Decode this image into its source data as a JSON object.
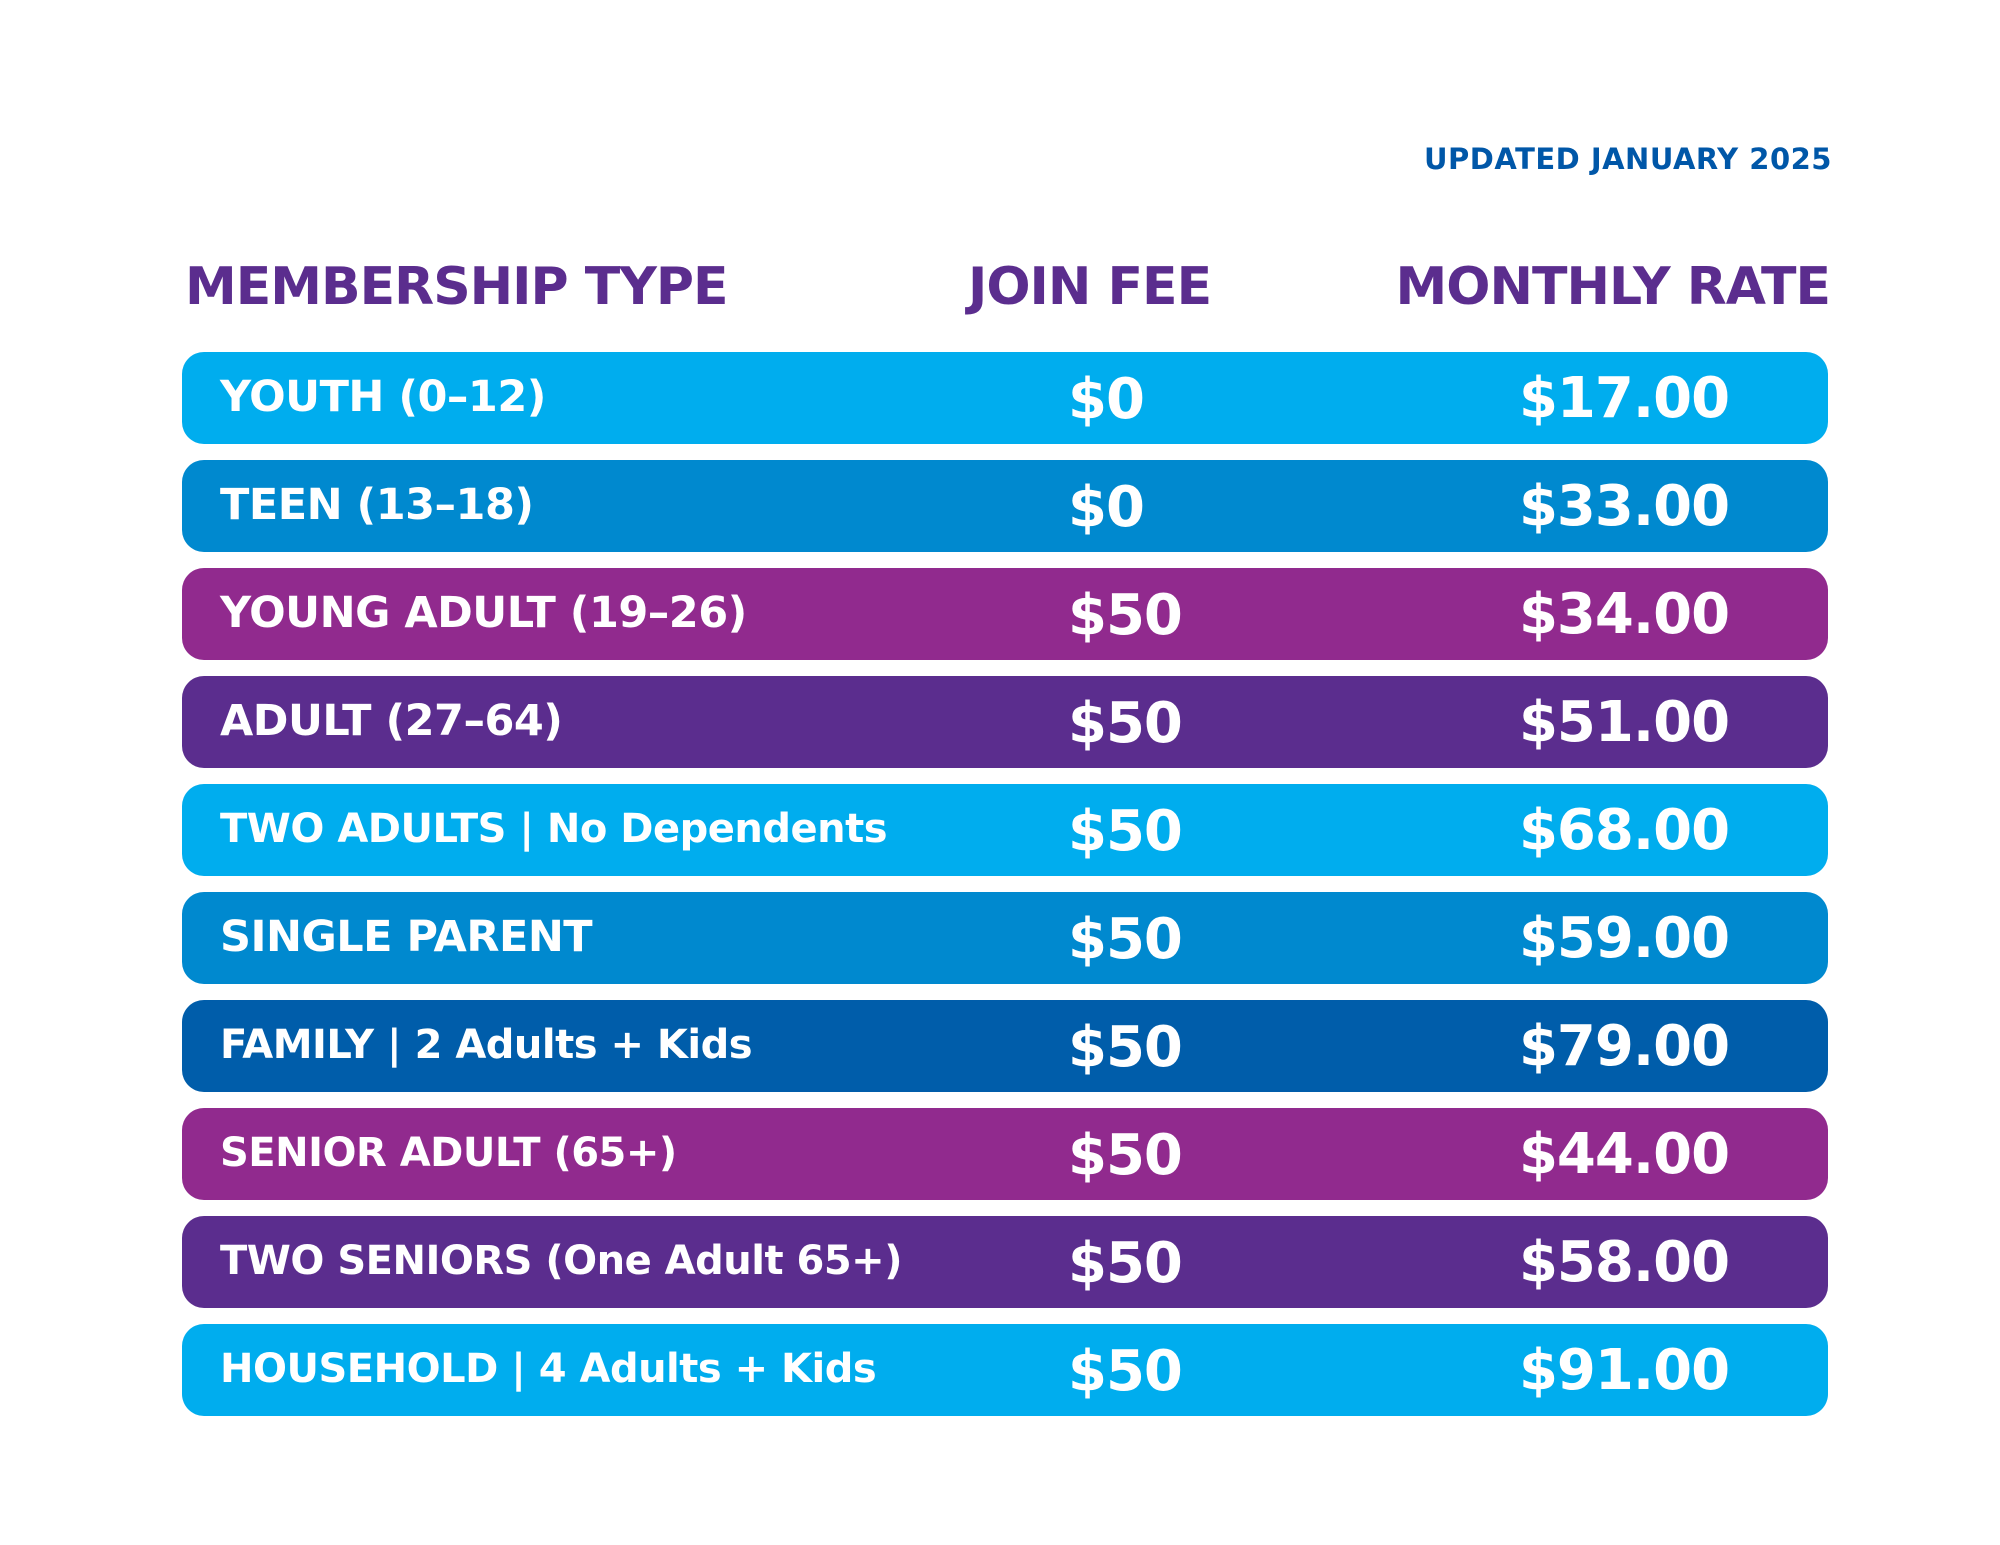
{
  "updated_label": "UPDATED JANUARY 2025",
  "header": {
    "type": "MEMBERSHIP TYPE",
    "fee": "JOIN FEE",
    "rate": "MONTHLY RATE"
  },
  "colors": {
    "cyan": "#00adee",
    "blue": "#0089cf",
    "navy": "#005daa",
    "magenta": "#912a8e",
    "purple": "#5b2d8e",
    "header_text": "#5b2d8e",
    "updated_text": "#0057a8"
  },
  "rows": [
    {
      "type": "YOUTH (0–12)",
      "fee": "$0",
      "rate": "$17.00",
      "color": "#00adee"
    },
    {
      "type": "TEEN (13–18)",
      "fee": "$0",
      "rate": "$33.00",
      "color": "#0089cf"
    },
    {
      "type": "YOUNG ADULT (19–26)",
      "fee": "$50",
      "rate": "$34.00",
      "color": "#912a8e"
    },
    {
      "type": "ADULT (27–64)",
      "fee": "$50",
      "rate": "$51.00",
      "color": "#5b2d8e"
    },
    {
      "type": "TWO ADULTS | No Dependents",
      "fee": "$50",
      "rate": "$68.00",
      "color": "#00adee"
    },
    {
      "type": "SINGLE PARENT",
      "fee": "$50",
      "rate": "$59.00",
      "color": "#0089cf"
    },
    {
      "type": "FAMILY | 2 Adults + Kids",
      "fee": "$50",
      "rate": "$79.00",
      "color": "#005daa"
    },
    {
      "type": "SENIOR ADULT (65+)",
      "fee": "$50",
      "rate": "$44.00",
      "color": "#912a8e"
    },
    {
      "type": "TWO SENIORS (One Adult 65+)",
      "fee": "$50",
      "rate": "$58.00",
      "color": "#5b2d8e"
    },
    {
      "type": "HOUSEHOLD | 4 Adults + Kids",
      "fee": "$50",
      "rate": "$91.00",
      "color": "#00adee"
    }
  ]
}
